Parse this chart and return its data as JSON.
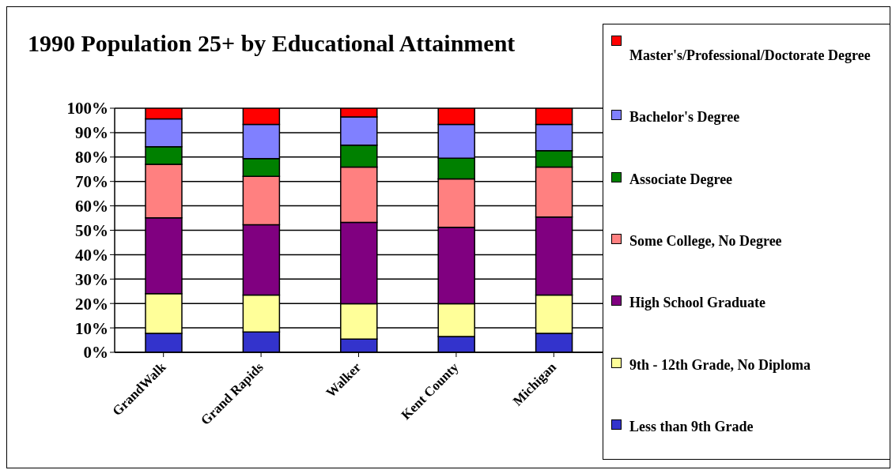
{
  "chart_data": {
    "type": "bar",
    "title": "1990 Population 25+ by Educational Attainment",
    "stacked": true,
    "categories": [
      "GrandWalk",
      "Grand Rapids",
      "Walker",
      "Kent County",
      "Michigan"
    ],
    "series": [
      {
        "name": "Less than 9th Grade",
        "color": "#3333cc",
        "values": [
          7.8,
          8.3,
          5.4,
          6.5,
          7.8
        ]
      },
      {
        "name": "9th - 12th Grade, No Diploma",
        "color": "#ffff99",
        "values": [
          16.2,
          15.2,
          14.5,
          13.4,
          15.7
        ]
      },
      {
        "name": "High School Graduate",
        "color": "#800080",
        "values": [
          31.1,
          28.8,
          33.3,
          31.3,
          31.9
        ]
      },
      {
        "name": "Some College, No Degree",
        "color": "#ff8080",
        "values": [
          21.9,
          19.8,
          22.7,
          19.8,
          20.5
        ]
      },
      {
        "name": "Associate Degree",
        "color": "#008000",
        "values": [
          7.2,
          7.3,
          9.0,
          8.5,
          6.7
        ]
      },
      {
        "name": "Bachelor's Degree",
        "color": "#8080ff",
        "values": [
          11.4,
          14.0,
          11.5,
          13.9,
          10.8
        ]
      },
      {
        "name": "Master's/Professional/Doctorate Degree",
        "color": "#ff0000",
        "values": [
          4.4,
          6.6,
          3.6,
          6.6,
          6.6
        ]
      }
    ],
    "ylim": [
      0,
      100
    ],
    "yticks": [
      {
        "value": 0,
        "label": "0%"
      },
      {
        "value": 10,
        "label": "10%"
      },
      {
        "value": 20,
        "label": "20%"
      },
      {
        "value": 30,
        "label": "30%"
      },
      {
        "value": 40,
        "label": "40%"
      },
      {
        "value": 50,
        "label": "50%"
      },
      {
        "value": 60,
        "label": "60%"
      },
      {
        "value": 70,
        "label": "70%"
      },
      {
        "value": 80,
        "label": "80%"
      },
      {
        "value": 90,
        "label": "90%"
      },
      {
        "value": 100,
        "label": "100%"
      }
    ],
    "grid": "y",
    "legend": "right"
  }
}
